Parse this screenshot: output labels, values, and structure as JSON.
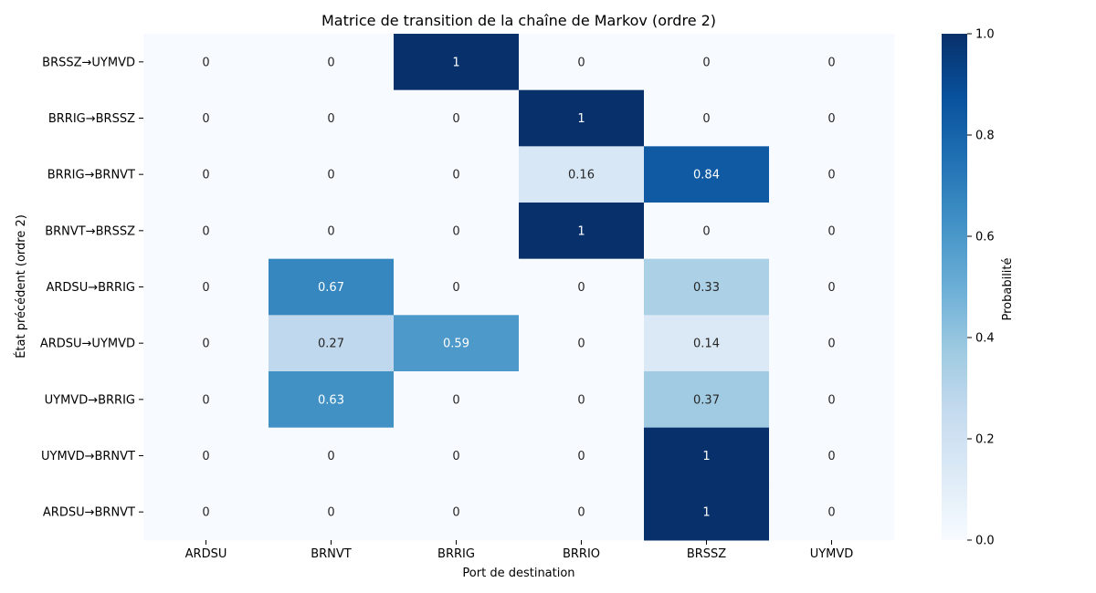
{
  "chart_data": {
    "type": "heatmap",
    "title": "Matrice de transition de la chaîne de Markov (ordre 2)",
    "xlabel": "Port de destination",
    "ylabel": "État précédent (ordre 2)",
    "x_categories": [
      "ARDSU",
      "BRNVT",
      "BRRIG",
      "BRRIO",
      "BRSSZ",
      "UYMVD"
    ],
    "y_categories": [
      "BRSSZ→UYMVD",
      "BRRIG→BRSSZ",
      "BRRIG→BRNVT",
      "BRNVT→BRSSZ",
      "ARDSU→BRRIG",
      "ARDSU→UYMVD",
      "UYMVD→BRRIG",
      "UYMVD→BRNVT",
      "ARDSU→BRNVT"
    ],
    "values": [
      [
        0,
        0,
        1,
        0,
        0,
        0
      ],
      [
        0,
        0,
        0,
        1,
        0,
        0
      ],
      [
        0,
        0,
        0,
        0.16,
        0.84,
        0
      ],
      [
        0,
        0,
        0,
        1,
        0,
        0
      ],
      [
        0,
        0.67,
        0,
        0,
        0.33,
        0
      ],
      [
        0,
        0.27,
        0.59,
        0,
        0.14,
        0
      ],
      [
        0,
        0.63,
        0,
        0,
        0.37,
        0
      ],
      [
        0,
        0,
        0,
        0,
        1,
        0
      ],
      [
        0,
        0,
        0,
        0,
        1,
        0
      ]
    ],
    "colorbar": {
      "label": "Probabilité",
      "range": [
        0,
        1
      ],
      "ticks": [
        "0.0",
        "0.2",
        "0.4",
        "0.6",
        "0.8",
        "1.0"
      ],
      "colormap": "Blues"
    },
    "grid": false
  }
}
